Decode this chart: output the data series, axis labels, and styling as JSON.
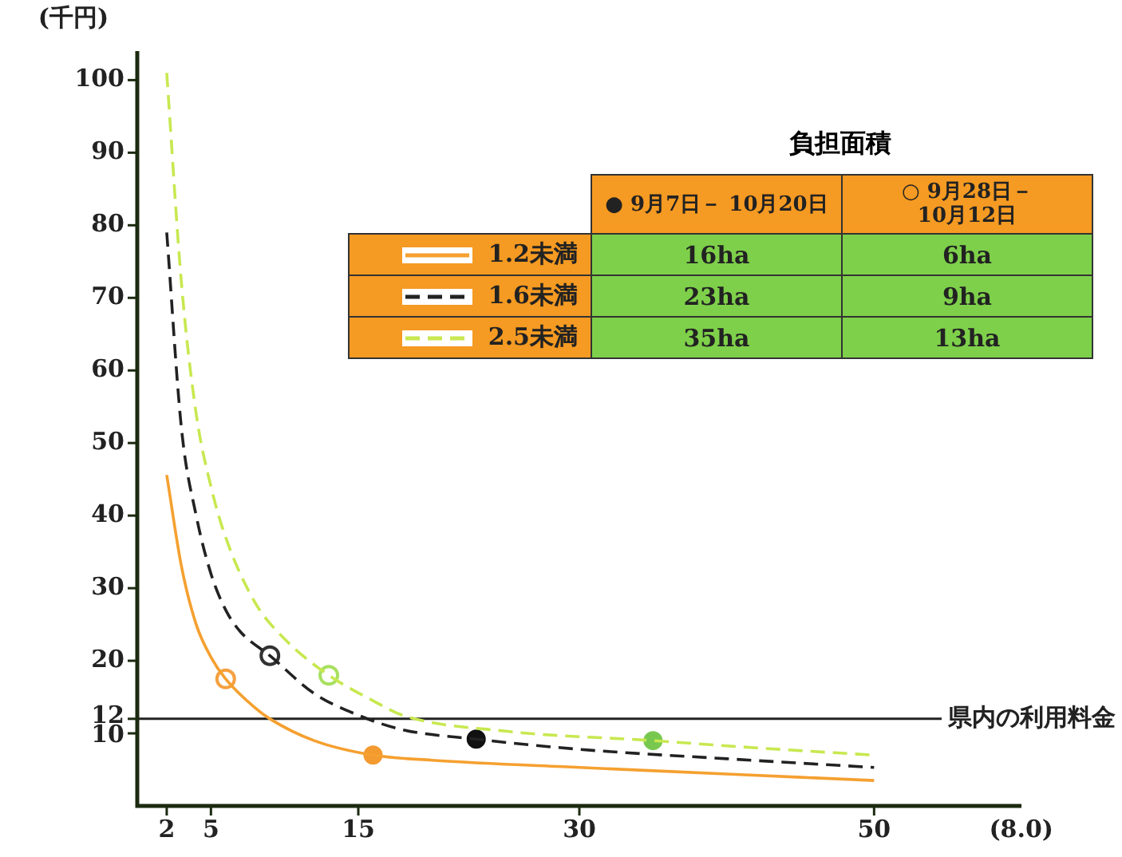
{
  "chart_data": {
    "type": "line",
    "ylabel": "(千円)",
    "xlabel": "(8.0)",
    "legend_title": "負担面積",
    "xlim": [
      0,
      60
    ],
    "ylim": [
      0,
      104
    ],
    "xticks": [
      2,
      5,
      15,
      30,
      50
    ],
    "yticks": [
      10,
      12,
      20,
      30,
      40,
      50,
      60,
      70,
      80,
      90,
      100
    ],
    "grid": false,
    "legend": "top",
    "annotations": [
      "16ha",
      "6ha",
      "23ha",
      "9ha",
      "35ha",
      "13ha"
    ],
    "marker": "none",
    "series": [
      {
        "name": "1.2未満",
        "color": "#f5a030",
        "line_style": "solid",
        "x": [
          2,
          3,
          4,
          5,
          6,
          8,
          9,
          12,
          16,
          20,
          30,
          40,
          50
        ],
        "values": [
          45.6,
          33,
          25,
          20.5,
          17.5,
          13.5,
          12,
          9,
          7,
          6.3,
          5.3,
          4.4,
          3.5
        ]
      },
      {
        "name": "1.6未満",
        "color": "#222222",
        "line_style": "dashed",
        "x": [
          2,
          3,
          4,
          5,
          6,
          7,
          9,
          12,
          15,
          18,
          23,
          30,
          40,
          50
        ],
        "values": [
          79,
          52,
          40,
          32,
          27,
          24,
          20.7,
          15.5,
          12.5,
          10.5,
          9.2,
          7.8,
          6.5,
          5.3
        ]
      },
      {
        "name": "2.5未満",
        "color": "#c8e850",
        "line_style": "dashed",
        "x": [
          2,
          3,
          4,
          5,
          6,
          8,
          10,
          13,
          16,
          18,
          25,
          35,
          42,
          50
        ],
        "values": [
          101,
          72,
          54,
          44,
          37,
          28,
          23,
          18,
          14.5,
          12.5,
          10.3,
          9,
          8,
          7
        ]
      },
      {
        "name": "● 9月7日－ 10月20日",
        "type": "scatter",
        "marker": "circle",
        "x": [
          16,
          23,
          35
        ],
        "values": [
          7,
          9.2,
          9
        ],
        "colors": [
          "#f39a30",
          "#111111",
          "#78c850"
        ]
      },
      {
        "name": "○ 9月28日－ 10月12日",
        "type": "scatter",
        "marker": "circle",
        "x": [
          6,
          9,
          13
        ],
        "values": [
          17.5,
          20.7,
          18
        ],
        "colors": [
          "#f5a040",
          "#333333",
          "#a8e060"
        ]
      }
    ],
    "ref_lines": [
      {
        "axis": "y",
        "value": 12,
        "label": "県内の利用料金",
        "color": "#222222"
      }
    ]
  }
}
